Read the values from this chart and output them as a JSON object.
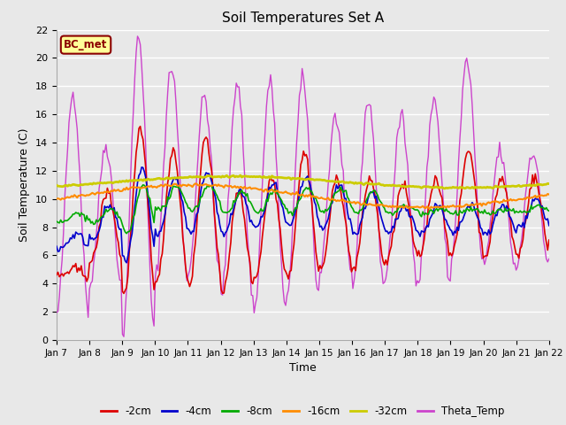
{
  "title": "Soil Temperatures Set A",
  "xlabel": "Time",
  "ylabel": "Soil Temperature (C)",
  "annotation": "BC_met",
  "ylim": [
    0,
    22
  ],
  "series": {
    "depth_2cm": {
      "color": "#dd0000",
      "label": "-2cm"
    },
    "depth_4cm": {
      "color": "#0000cc",
      "label": "-4cm"
    },
    "depth_8cm": {
      "color": "#00aa00",
      "label": "-8cm"
    },
    "depth_16cm": {
      "color": "#ff8c00",
      "label": "-16cm"
    },
    "depth_32cm": {
      "color": "#cccc00",
      "label": "-32cm"
    },
    "theta_temp": {
      "color": "#cc44cc",
      "label": "Theta_Temp"
    }
  },
  "date_labels": [
    "Jan 7",
    "Jan 8",
    "Jan 9",
    "Jan 10",
    "Jan 11",
    "Jan 12",
    "Jan 13",
    "Jan 14",
    "Jan 15",
    "Jan 16",
    "Jan 17",
    "Jan 18",
    "Jan 19",
    "Jan 20",
    "Jan 21",
    "Jan 22"
  ],
  "background_color": "#e8e8e8",
  "plot_bg_color": "#e8e8e8",
  "grid_color": "#ffffff",
  "theta_peaks": [
    17.5,
    13.8,
    21.5,
    19.3,
    17.3,
    18.3,
    18.3,
    18.5,
    15.8,
    17.0,
    15.8,
    17.1,
    19.8,
    13.4,
    13.4
  ],
  "theta_valleys": [
    1.8,
    3.8,
    0.3,
    4.5,
    4.5,
    3.0,
    1.8,
    3.2,
    4.7,
    3.8,
    4.5,
    4.0,
    5.5,
    5.0,
    5.3
  ],
  "peaks_2": [
    5.0,
    10.5,
    14.8,
    13.5,
    14.5,
    10.5,
    11.5,
    13.3,
    11.5,
    11.5,
    11.0,
    11.5,
    13.5,
    11.5,
    11.5
  ],
  "valleys_2": [
    4.5,
    5.5,
    3.2,
    4.0,
    4.0,
    3.5,
    4.5,
    4.5,
    5.0,
    5.0,
    5.5,
    6.0,
    6.0,
    6.0,
    6.0
  ],
  "peaks_4": [
    7.5,
    9.5,
    12.2,
    11.5,
    12.0,
    10.5,
    11.0,
    11.5,
    11.0,
    10.5,
    9.5,
    9.5,
    9.5,
    9.5,
    10.0
  ],
  "valleys_4": [
    6.5,
    7.2,
    5.5,
    7.5,
    7.5,
    7.5,
    8.0,
    8.0,
    7.8,
    7.5,
    7.5,
    7.5,
    7.5,
    7.5,
    8.0
  ],
  "peaks_8": [
    9.0,
    9.2,
    11.0,
    10.8,
    11.0,
    10.5,
    10.5,
    10.8,
    10.8,
    10.5,
    9.5,
    9.3,
    9.2,
    9.2,
    9.5
  ],
  "valleys_8": [
    8.3,
    8.3,
    7.5,
    9.2,
    9.2,
    9.0,
    9.0,
    9.0,
    9.0,
    9.0,
    9.0,
    9.0,
    9.0,
    9.0,
    9.0
  ]
}
